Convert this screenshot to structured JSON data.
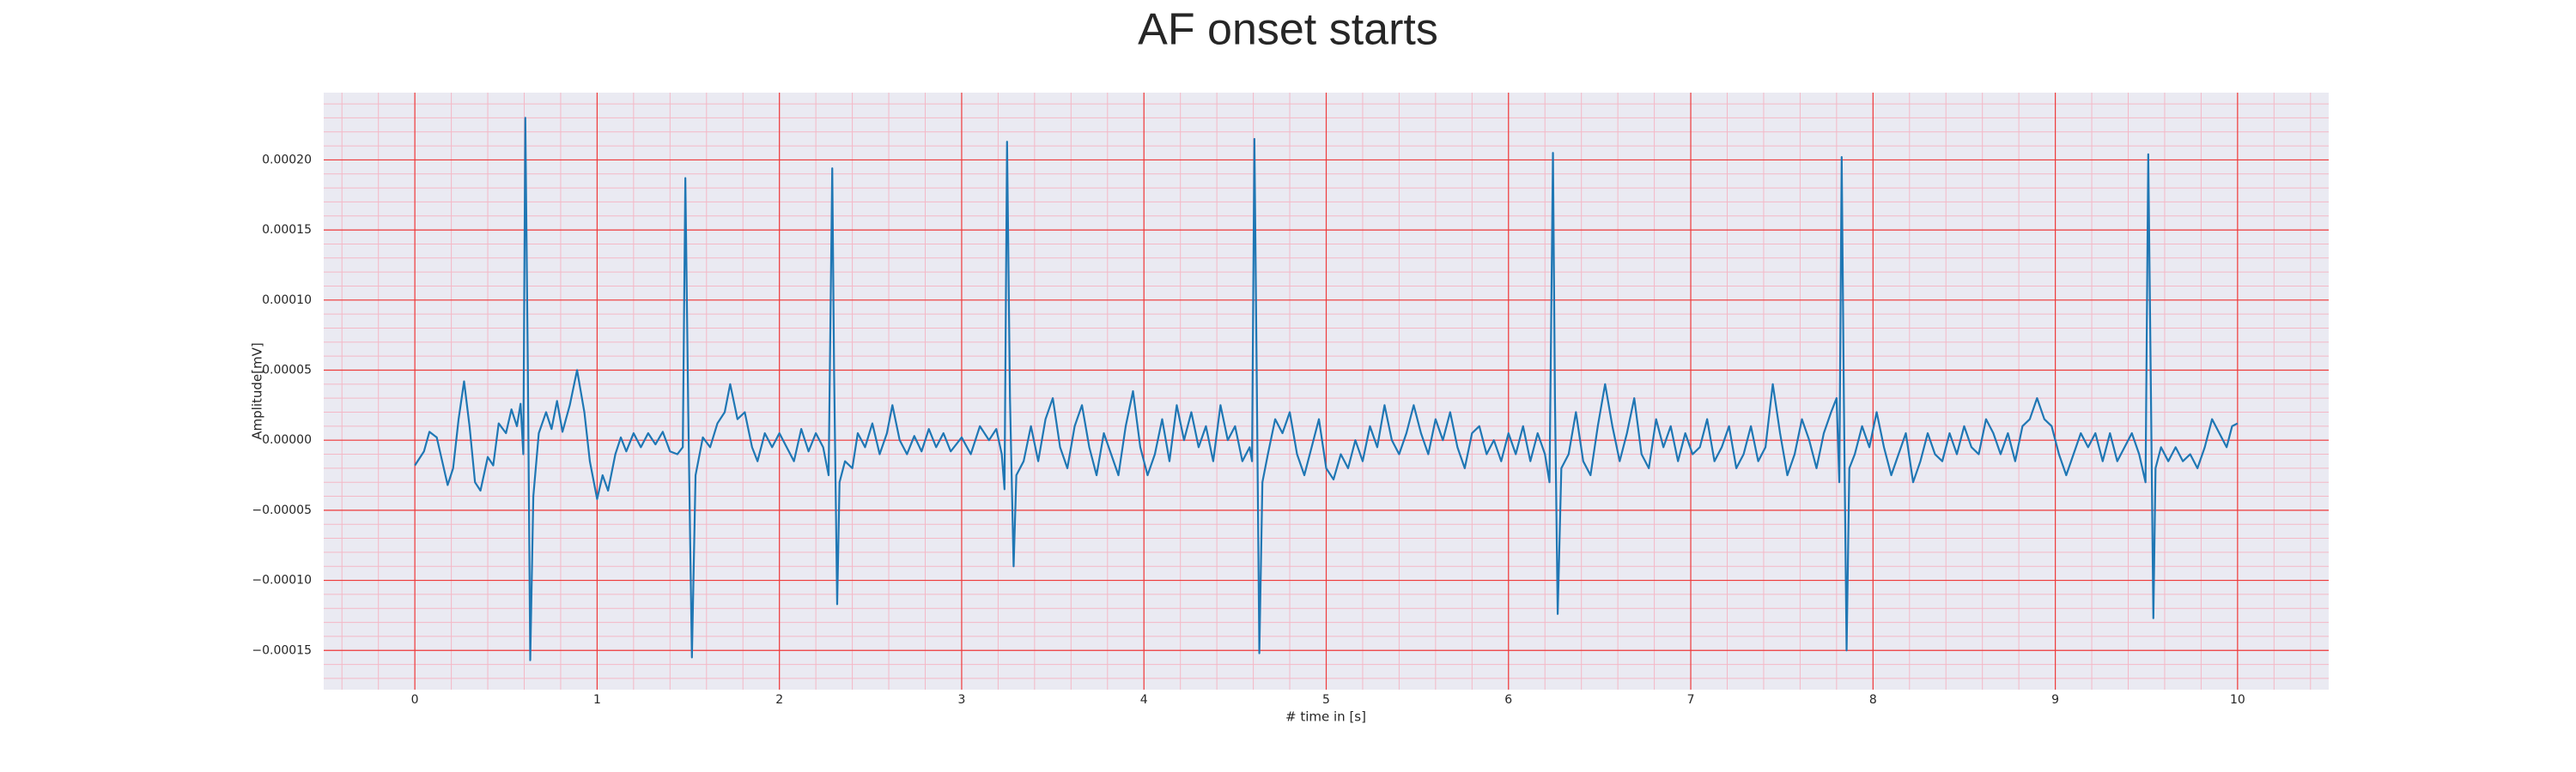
{
  "chart_data": {
    "type": "line",
    "title": "AF onset starts",
    "xlabel": "# time in [s]",
    "ylabel": "Amplitude[mV]",
    "color": "#1f77b4",
    "grid": true,
    "xlim": [
      -0.5,
      10.5
    ],
    "xticks": [
      0,
      1,
      2,
      3,
      4,
      5,
      6,
      7,
      8,
      9,
      10
    ],
    "ylim": [
      -0.000178,
      0.000248
    ],
    "yticks": [
      {
        "value": -0.00015,
        "label": "−0.00015"
      },
      {
        "value": -0.0001,
        "label": "−0.00010"
      },
      {
        "value": -5e-05,
        "label": "−0.00005"
      },
      {
        "value": 0,
        "label": "0.00000"
      },
      {
        "value": 5e-05,
        "label": "0.00005"
      },
      {
        "value": 0.0001,
        "label": "0.00010"
      },
      {
        "value": 0.00015,
        "label": "0.00015"
      },
      {
        "value": 0.0002,
        "label": "0.00020"
      }
    ],
    "x": [
      0.0,
      0.05,
      0.08,
      0.12,
      0.15,
      0.18,
      0.21,
      0.24,
      0.27,
      0.3,
      0.33,
      0.36,
      0.4,
      0.43,
      0.46,
      0.5,
      0.53,
      0.56,
      0.58,
      0.595,
      0.606,
      0.62,
      0.633,
      0.65,
      0.68,
      0.72,
      0.75,
      0.78,
      0.81,
      0.85,
      0.89,
      0.93,
      0.96,
      1.0,
      1.03,
      1.06,
      1.1,
      1.13,
      1.16,
      1.2,
      1.24,
      1.28,
      1.32,
      1.36,
      1.4,
      1.44,
      1.47,
      1.484,
      1.5,
      1.52,
      1.54,
      1.58,
      1.62,
      1.66,
      1.7,
      1.73,
      1.77,
      1.81,
      1.85,
      1.88,
      1.92,
      1.96,
      2.0,
      2.04,
      2.08,
      2.12,
      2.16,
      2.2,
      2.24,
      2.27,
      2.29,
      2.3,
      2.317,
      2.33,
      2.36,
      2.4,
      2.43,
      2.47,
      2.51,
      2.55,
      2.59,
      2.62,
      2.66,
      2.7,
      2.74,
      2.78,
      2.82,
      2.86,
      2.9,
      2.94,
      3.0,
      3.05,
      3.1,
      3.15,
      3.19,
      3.22,
      3.235,
      3.249,
      3.265,
      3.285,
      3.3,
      3.34,
      3.38,
      3.42,
      3.46,
      3.5,
      3.54,
      3.58,
      3.62,
      3.66,
      3.7,
      3.74,
      3.78,
      3.82,
      3.86,
      3.9,
      3.94,
      3.98,
      4.02,
      4.06,
      4.1,
      4.14,
      4.18,
      4.22,
      4.26,
      4.3,
      4.34,
      4.38,
      4.42,
      4.46,
      4.5,
      4.54,
      4.58,
      4.593,
      4.606,
      4.62,
      4.633,
      4.65,
      4.68,
      4.72,
      4.76,
      4.8,
      4.84,
      4.88,
      4.92,
      4.96,
      5.0,
      5.04,
      5.08,
      5.12,
      5.16,
      5.2,
      5.24,
      5.28,
      5.32,
      5.36,
      5.4,
      5.44,
      5.48,
      5.52,
      5.56,
      5.6,
      5.64,
      5.68,
      5.72,
      5.76,
      5.8,
      5.84,
      5.88,
      5.92,
      5.96,
      6.0,
      6.04,
      6.08,
      6.12,
      6.16,
      6.2,
      6.225,
      6.244,
      6.255,
      6.27,
      6.29,
      6.33,
      6.37,
      6.41,
      6.45,
      6.49,
      6.53,
      6.57,
      6.61,
      6.65,
      6.69,
      6.73,
      6.77,
      6.81,
      6.85,
      6.89,
      6.93,
      6.97,
      7.01,
      7.05,
      7.09,
      7.13,
      7.17,
      7.21,
      7.25,
      7.29,
      7.33,
      7.37,
      7.41,
      7.45,
      7.49,
      7.53,
      7.57,
      7.61,
      7.65,
      7.69,
      7.73,
      7.77,
      7.8,
      7.815,
      7.828,
      7.84,
      7.855,
      7.87,
      7.9,
      7.94,
      7.98,
      8.02,
      8.06,
      8.1,
      8.14,
      8.18,
      8.22,
      8.26,
      8.3,
      8.34,
      8.38,
      8.42,
      8.46,
      8.5,
      8.54,
      8.58,
      8.62,
      8.66,
      8.7,
      8.74,
      8.78,
      8.82,
      8.86,
      8.9,
      8.94,
      8.98,
      9.02,
      9.06,
      9.1,
      9.14,
      9.18,
      9.22,
      9.26,
      9.3,
      9.34,
      9.38,
      9.42,
      9.46,
      9.495,
      9.51,
      9.525,
      9.538,
      9.55,
      9.58,
      9.62,
      9.66,
      9.7,
      9.74,
      9.78,
      9.82,
      9.86,
      9.9,
      9.94,
      9.97,
      10.0
    ],
    "values": [
      -1.8e-05,
      -8e-06,
      6e-06,
      2e-06,
      -1.5e-05,
      -3.2e-05,
      -2e-05,
      1.5e-05,
      4.2e-05,
      1e-05,
      -3e-05,
      -3.6e-05,
      -1.2e-05,
      -1.8e-05,
      1.2e-05,
      5e-06,
      2.2e-05,
      1e-05,
      2.6e-05,
      -1e-05,
      0.00023,
      5e-05,
      -0.000157,
      -4e-05,
      5e-06,
      2e-05,
      8e-06,
      2.8e-05,
      6e-06,
      2.5e-05,
      5e-05,
      2e-05,
      -1.5e-05,
      -4.2e-05,
      -2.5e-05,
      -3.6e-05,
      -1e-05,
      2e-06,
      -8e-06,
      5e-06,
      -5e-06,
      5e-06,
      -3e-06,
      6e-06,
      -8e-06,
      -1e-05,
      -5e-06,
      0.000187,
      2e-05,
      -0.000155,
      -2.5e-05,
      2e-06,
      -5e-06,
      1.2e-05,
      2e-05,
      4e-05,
      1.5e-05,
      2e-05,
      -5e-06,
      -1.5e-05,
      5e-06,
      -5e-06,
      5e-06,
      -5e-06,
      -1.5e-05,
      8e-06,
      -8e-06,
      5e-06,
      -5e-06,
      -2.5e-05,
      0.000194,
      5e-05,
      -0.000117,
      -3e-05,
      -1.5e-05,
      -2e-05,
      5e-06,
      -5e-06,
      1.2e-05,
      -1e-05,
      5e-06,
      2.5e-05,
      0,
      -1e-05,
      3e-06,
      -8e-06,
      8e-06,
      -5e-06,
      5e-06,
      -8e-06,
      2e-06,
      -1e-05,
      1e-05,
      0,
      8e-06,
      -1e-05,
      -3.5e-05,
      0.000213,
      3e-05,
      -9e-05,
      -2.5e-05,
      -1.5e-05,
      1e-05,
      -1.5e-05,
      1.5e-05,
      3e-05,
      -5e-06,
      -2e-05,
      1e-05,
      2.5e-05,
      -5e-06,
      -2.5e-05,
      5e-06,
      -1e-05,
      -2.5e-05,
      1e-05,
      3.5e-05,
      -5e-06,
      -2.5e-05,
      -1e-05,
      1.5e-05,
      -1.5e-05,
      2.5e-05,
      0,
      2e-05,
      -5e-06,
      1e-05,
      -1.5e-05,
      2.5e-05,
      0,
      1e-05,
      -1.5e-05,
      -5e-06,
      -1.5e-05,
      0.000215,
      3e-05,
      -0.000152,
      -3e-05,
      -1e-05,
      1.5e-05,
      5e-06,
      2e-05,
      -1e-05,
      -2.5e-05,
      -5e-06,
      1.5e-05,
      -2e-05,
      -2.8e-05,
      -1e-05,
      -2e-05,
      0,
      -1.5e-05,
      1e-05,
      -5e-06,
      2.5e-05,
      0,
      -1e-05,
      5e-06,
      2.5e-05,
      5e-06,
      -1e-05,
      1.5e-05,
      0,
      2e-05,
      -5e-06,
      -2e-05,
      5e-06,
      1e-05,
      -1e-05,
      0,
      -1.5e-05,
      5e-06,
      -1e-05,
      1e-05,
      -1.5e-05,
      5e-06,
      -1e-05,
      -3e-05,
      0.000205,
      3e-05,
      -0.000124,
      -2e-05,
      -1e-05,
      2e-05,
      -1.5e-05,
      -2.5e-05,
      1e-05,
      4e-05,
      1e-05,
      -1.5e-05,
      5e-06,
      3e-05,
      -1e-05,
      -2e-05,
      1.5e-05,
      -5e-06,
      1e-05,
      -1.5e-05,
      5e-06,
      -1e-05,
      -5e-06,
      1.5e-05,
      -1.5e-05,
      -5e-06,
      1e-05,
      -2e-05,
      -1e-05,
      1e-05,
      -1.5e-05,
      -5e-06,
      4e-05,
      5e-06,
      -2.5e-05,
      -1e-05,
      1.5e-05,
      0,
      -2e-05,
      5e-06,
      2e-05,
      3e-05,
      -3e-05,
      0.000202,
      3e-05,
      -0.00015,
      -2e-05,
      -1e-05,
      1e-05,
      -5e-06,
      2e-05,
      -5e-06,
      -2.5e-05,
      -1e-05,
      5e-06,
      -3e-05,
      -1.5e-05,
      5e-06,
      -1e-05,
      -1.5e-05,
      5e-06,
      -1e-05,
      1e-05,
      -5e-06,
      -1e-05,
      1.5e-05,
      5e-06,
      -1e-05,
      5e-06,
      -1.5e-05,
      1e-05,
      1.5e-05,
      3e-05,
      1.5e-05,
      1e-05,
      -1e-05,
      -2.5e-05,
      -1e-05,
      5e-06,
      -5e-06,
      5e-06,
      -1.5e-05,
      5e-06,
      -1.5e-05,
      -5e-06,
      5e-06,
      -1e-05,
      -3e-05,
      0.000204,
      3e-05,
      -0.000127,
      -2e-05,
      -5e-06,
      -1.5e-05,
      -5e-06,
      -1.5e-05,
      -1e-05,
      -2e-05,
      -5e-06,
      1.5e-05,
      5e-06,
      -5e-06,
      1e-05,
      1.2e-05
    ]
  }
}
